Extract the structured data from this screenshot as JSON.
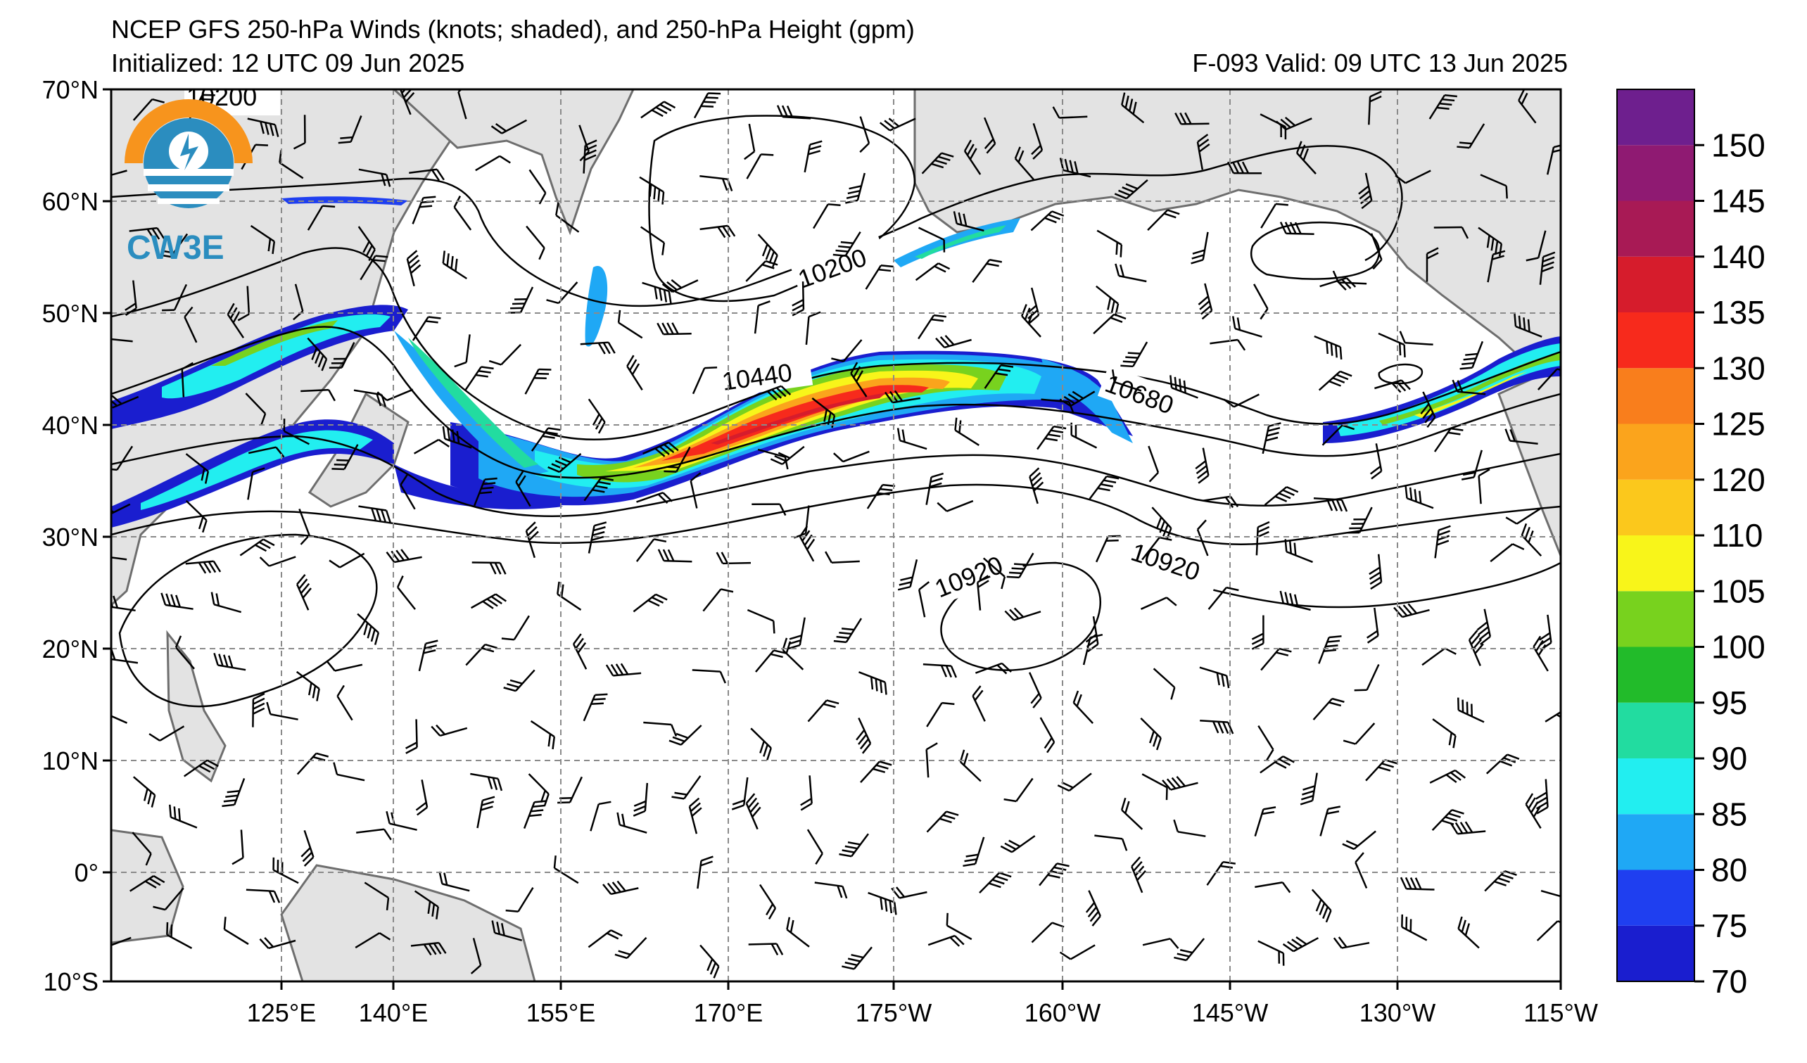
{
  "header": {
    "title": "NCEP GFS 250-hPa Winds (knots; shaded), and 250-hPa Height (gpm)",
    "init": "Initialized: 12 UTC 09 Jun 2025",
    "valid": "F-093  Valid: 09 UTC 13 Jun 2025"
  },
  "map": {
    "lon_labels": [
      "125°E",
      "140°E",
      "155°E",
      "170°E",
      "175°W",
      "160°W",
      "145°W",
      "130°W",
      "115°W"
    ],
    "lat_labels": [
      "70°N",
      "60°N",
      "50°N",
      "40°N",
      "30°N",
      "20°N",
      "10°N",
      "0°",
      "10°S"
    ],
    "contour_labels": [
      "10200",
      "10200",
      "10440",
      "10680",
      "10920",
      "10920"
    ],
    "land_color": "#e3e3e3",
    "coast_color": "#6e6e6e",
    "grid_style": "dashed gray"
  },
  "colorbar": {
    "labels": [
      "70",
      "75",
      "80",
      "85",
      "90",
      "95",
      "100",
      "105",
      "110",
      "120",
      "125",
      "130",
      "135",
      "140",
      "145",
      "150"
    ],
    "colors": [
      "#1a1ecf",
      "#1f3ff0",
      "#1fa8f5",
      "#22eef0",
      "#22dca0",
      "#22bb2a",
      "#78d21e",
      "#f8f51a",
      "#fbc81c",
      "#fba41c",
      "#f97e1c",
      "#f72a1c",
      "#d61c2c",
      "#a81a55",
      "#8f1a72",
      "#6e1f8e"
    ]
  },
  "logo": {
    "text": "CW3E"
  }
}
